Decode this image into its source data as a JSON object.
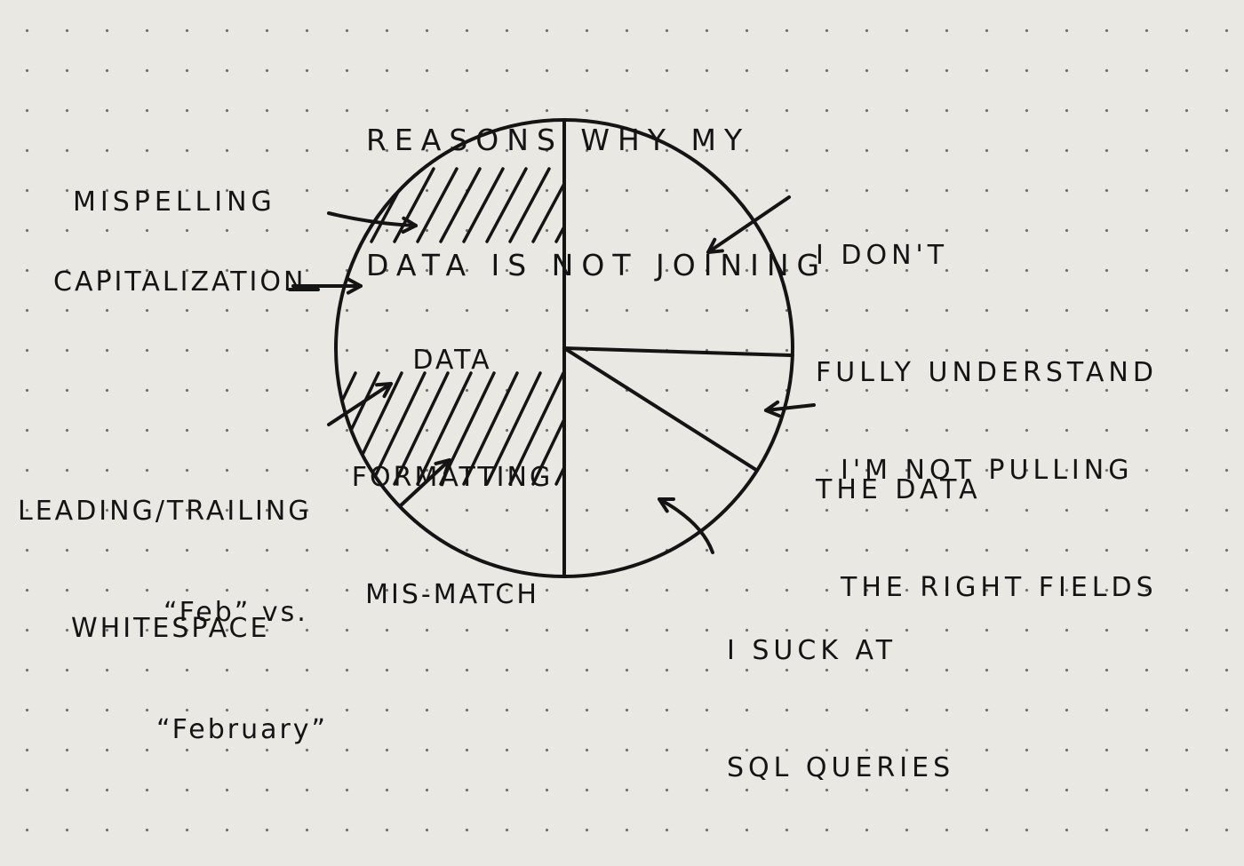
{
  "chart_data": {
    "type": "pie",
    "title": "REASONS WHY MY DATA IS NOT JOINING",
    "slices": [
      {
        "label": "I DON'T FULLY UNDERSTAND THE DATA",
        "value": 25.5,
        "hatched": false
      },
      {
        "label": "I'M NOT PULLING THE RIGHT FIELDS",
        "value": 8.5,
        "hatched": false
      },
      {
        "label": "I SUCK AT SQL QUERIES",
        "value": 16,
        "hatched": false
      },
      {
        "label": "DATA FORMATTING MIS-MATCH",
        "value": 50,
        "hatched": true
      }
    ],
    "annotations": [
      "MISPELLING",
      "CAPITALIZATION",
      "LEADING/TRAILING WHITESPACE",
      "“Feb” vs. “February”"
    ]
  },
  "text": {
    "title_line1": "REASONS WHY MY",
    "title_line2": "DATA IS NOT JOINING",
    "slice1_line1": "I DON'T",
    "slice1_line2": "FULLY UNDERSTAND",
    "slice1_line3": "THE DATA",
    "slice2_line1": "I'M NOT PULLING",
    "slice2_line2": "THE RIGHT FIELDS",
    "slice3_line1": "I SUCK AT",
    "slice3_line2": "SQL QUERIES",
    "slice4_line1": "DATA",
    "slice4_line2": "FORMATTING",
    "slice4_line3": "MIS-MATCH",
    "ann_misspelling": "MISPELLING",
    "ann_capitalization": "CAPITALIZATION",
    "ann_whitespace_line1": "LEADING/TRAILING",
    "ann_whitespace_line2": "WHITESPACE",
    "ann_feb_line1": "“Feb” vs.",
    "ann_feb_line2": "“February”"
  },
  "colors": {
    "ink": "#141414",
    "paper": "#e9e8e3"
  }
}
